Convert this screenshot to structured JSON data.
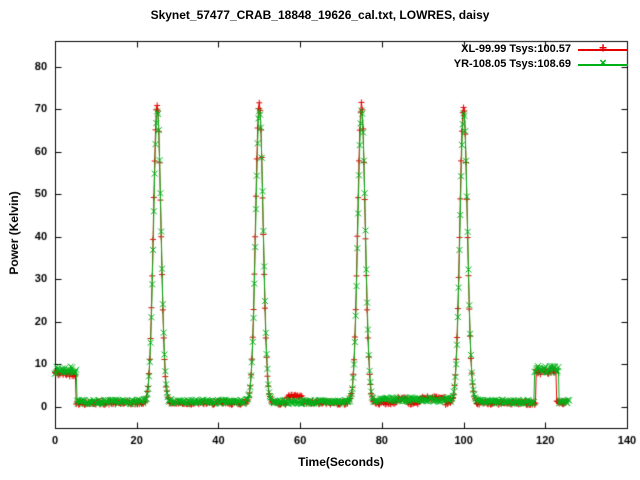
{
  "chart_data": {
    "type": "line",
    "title": "Skynet_57477_CRAB_18848_19626_cal.txt, LOWRES, daisy",
    "xlabel": "Time(Seconds)",
    "ylabel": "Power (Kelvin)",
    "xlim": [
      0,
      140
    ],
    "ylim": [
      -5,
      86
    ],
    "xticks": [
      0,
      20,
      40,
      60,
      80,
      100,
      120,
      140
    ],
    "yticks": [
      0,
      10,
      20,
      30,
      40,
      50,
      60,
      70,
      80
    ],
    "grid": false,
    "legend_position": "top-right",
    "peaks_summary": {
      "times_seconds": [
        25,
        50,
        75,
        100
      ],
      "approx_peak_power_kelvin": 71,
      "baseline_power_kelvin": 1,
      "cal_block_start": {
        "range_seconds": [
          0,
          5
        ],
        "level_kelvin": 8.2
      },
      "cal_block_end": {
        "range_seconds": [
          117.5,
          123.5
        ],
        "level_kelvin": 8.6
      }
    },
    "series": [
      {
        "name": "XL-99.99 Tsys:100.57",
        "color": "#e60000",
        "marker": "plus",
        "model": {
          "seed": 42,
          "t_start": 0,
          "t_end": 125.2,
          "step": 0.2,
          "baseline": 0.9,
          "noise": 0.45,
          "sigma": 0.92,
          "blocks": [
            {
              "t0": 0.0,
              "t1": 5.1,
              "level": 7.9
            },
            {
              "t0": 117.7,
              "t1": 122.7,
              "level": 8.3
            }
          ],
          "bumps": [
            {
              "t0": 56.8,
              "t1": 60.6,
              "level": 2.4
            },
            {
              "t0": 83.8,
              "t1": 86.4,
              "level": 1.9
            },
            {
              "t0": 89.3,
              "t1": 95.6,
              "level": 2.1
            }
          ],
          "peaks": [
            {
              "t": 25.0,
              "h": 70.2
            },
            {
              "t": 50.0,
              "h": 70.9
            },
            {
              "t": 75.0,
              "h": 70.4
            },
            {
              "t": 100.0,
              "h": 69.9
            }
          ]
        }
      },
      {
        "name": "YR-108.05 Tsys:108.69",
        "color": "#00b118",
        "marker": "cross",
        "model": {
          "seed": 7,
          "t_start": 0,
          "t_end": 125.8,
          "step": 0.2,
          "baseline": 1.15,
          "noise": 0.5,
          "sigma": 0.92,
          "blocks": [
            {
              "t0": 0.0,
              "t1": 5.3,
              "level": 8.6
            },
            {
              "t0": 117.4,
              "t1": 123.4,
              "level": 8.8
            }
          ],
          "bumps": [
            {
              "t0": 79.5,
              "t1": 96.5,
              "level": 1.7
            }
          ],
          "peaks": [
            {
              "t": 25.05,
              "h": 68.3
            },
            {
              "t": 50.05,
              "h": 68.9
            },
            {
              "t": 75.05,
              "h": 68.4
            },
            {
              "t": 100.05,
              "h": 68.0
            }
          ]
        }
      }
    ]
  }
}
